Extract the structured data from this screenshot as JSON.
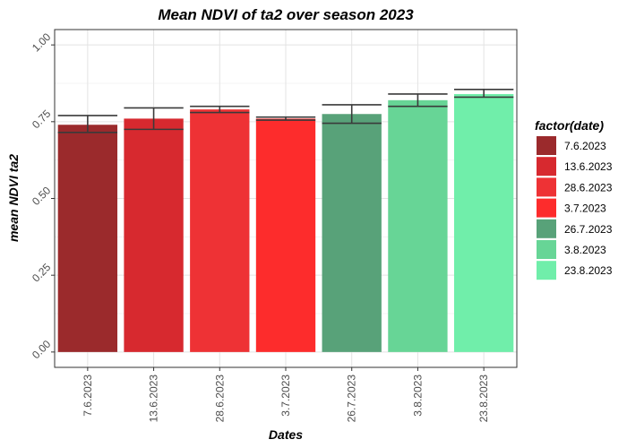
{
  "chart_data": {
    "type": "bar",
    "title": "Mean NDVI of ta2 over season 2023",
    "xlabel": "Dates",
    "ylabel": "mean NDVI ta2",
    "categories": [
      "7.6.2023",
      "13.6.2023",
      "28.6.2023",
      "3.7.2023",
      "26.7.2023",
      "3.8.2023",
      "23.8.2023"
    ],
    "values": [
      0.74,
      0.76,
      0.79,
      0.76,
      0.775,
      0.82,
      0.84
    ],
    "error_low": [
      0.715,
      0.725,
      0.78,
      0.755,
      0.745,
      0.8,
      0.83
    ],
    "error_high": [
      0.77,
      0.795,
      0.8,
      0.765,
      0.805,
      0.84,
      0.855
    ],
    "colors": [
      "#9b2a2c",
      "#d7292f",
      "#ee3235",
      "#fd2c2c",
      "#58a279",
      "#67d596",
      "#70eeaa"
    ],
    "ylim": [
      0,
      1.0
    ],
    "yticks": [
      0.0,
      0.25,
      0.5,
      0.75,
      1.0
    ],
    "ytick_labels": [
      "0.00",
      "0.25",
      "0.50",
      "0.75",
      "1.00"
    ],
    "grid": true,
    "legend": {
      "title": "factor(date)",
      "placement": "right",
      "entries": [
        "7.6.2023",
        "13.6.2023",
        "28.6.2023",
        "3.7.2023",
        "26.7.2023",
        "3.8.2023",
        "23.8.2023"
      ]
    }
  }
}
